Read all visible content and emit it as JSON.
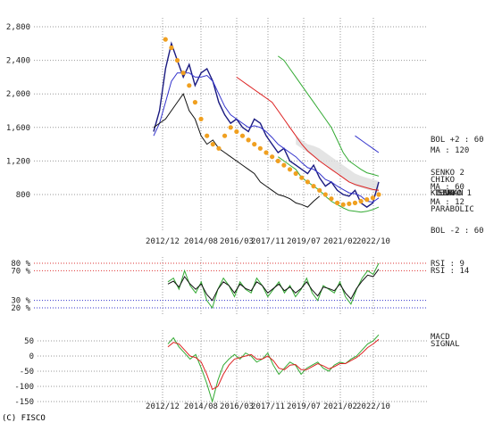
{
  "copyright": "(C) FISCO",
  "chart_data": [
    {
      "type": "line",
      "panel": "price",
      "x_ticks": [
        "2012/12",
        "2014/08",
        "2016/03",
        "2017/11",
        "2019/07",
        "2021/02",
        "2022/10"
      ],
      "y_ticks": [
        800,
        1200,
        1600,
        2000,
        2400,
        2800
      ],
      "y_tick_labels": [
        "800",
        "1,200",
        "1,600",
        "2,000",
        "2,400",
        "2,800"
      ],
      "ylim": [
        500,
        2900
      ],
      "grid": true,
      "legend": [
        {
          "label": "BOL +2 : 60",
          "color": "#33aa33"
        },
        {
          "label": "MA : 120",
          "color": "#3333cc"
        },
        {
          "label": "SENKO 2",
          "color": "#22aa22"
        },
        {
          "label": "CHIKO",
          "color": "#111111"
        },
        {
          "label": "MA : 60",
          "color": "#dd2222"
        },
        {
          "label": "KIJUN",
          "color": "#dd2222"
        },
        {
          "label": "TENKAN",
          "color": "#dd2222"
        },
        {
          "label": "SENKO 1",
          "color": "#cc2222"
        },
        {
          "label": "MA : 12",
          "color": "#3333cc"
        },
        {
          "label": "PARABOLIC",
          "color": "#f0a020"
        },
        {
          "label": "BOL -2 : 60",
          "color": "#33aa33"
        }
      ],
      "series": [
        {
          "name": "close",
          "color": "#1a1a80",
          "values": [
            1550,
            1800,
            2300,
            2600,
            2400,
            2200,
            2350,
            2100,
            2250,
            2300,
            2150,
            1900,
            1750,
            1650,
            1700,
            1600,
            1550,
            1700,
            1650,
            1500,
            1400,
            1300,
            1350,
            1200,
            1150,
            1100,
            1050,
            1150,
            1000,
            900,
            950,
            850,
            800,
            780,
            850,
            700,
            650,
            700,
            950
          ]
        },
        {
          "name": "MA : 12",
          "color": "#3333cc",
          "values": [
            1500,
            1650,
            1900,
            2150,
            2250,
            2250,
            2250,
            2200,
            2200,
            2220,
            2150,
            2000,
            1850,
            1750,
            1700,
            1650,
            1600,
            1620,
            1600,
            1550,
            1480,
            1400,
            1350,
            1300,
            1250,
            1180,
            1120,
            1100,
            1050,
            980,
            950,
            900,
            860,
            820,
            810,
            780,
            720,
            710,
            760
          ]
        },
        {
          "name": "MA : 60",
          "color": "#dd2222",
          "values": [
            null,
            null,
            null,
            null,
            null,
            null,
            null,
            null,
            null,
            null,
            null,
            null,
            null,
            null,
            2200,
            2150,
            2100,
            2050,
            2000,
            1950,
            1900,
            1800,
            1700,
            1600,
            1500,
            1400,
            1320,
            1260,
            1200,
            1150,
            1100,
            1050,
            1000,
            950,
            920,
            900,
            880,
            860,
            850
          ]
        },
        {
          "name": "MA : 120",
          "color": "#3333cc",
          "values": [
            null,
            null,
            null,
            null,
            null,
            null,
            null,
            null,
            null,
            null,
            null,
            null,
            null,
            null,
            null,
            null,
            null,
            null,
            null,
            null,
            null,
            null,
            null,
            null,
            null,
            null,
            null,
            null,
            null,
            null,
            null,
            null,
            null,
            null,
            1500,
            1450,
            1400,
            1350,
            1300
          ]
        },
        {
          "name": "BOL +2 : 60",
          "color": "#33aa33",
          "values": [
            null,
            null,
            null,
            null,
            null,
            null,
            null,
            null,
            null,
            null,
            null,
            null,
            null,
            null,
            null,
            null,
            null,
            null,
            null,
            null,
            null,
            2450,
            2400,
            2300,
            2200,
            2100,
            2000,
            1900,
            1800,
            1700,
            1600,
            1450,
            1300,
            1200,
            1150,
            1100,
            1060,
            1040,
            1020
          ]
        },
        {
          "name": "BOL -2 : 60",
          "color": "#33aa33",
          "values": [
            null,
            null,
            null,
            null,
            null,
            null,
            null,
            null,
            null,
            null,
            null,
            null,
            null,
            null,
            null,
            null,
            null,
            null,
            null,
            null,
            null,
            1250,
            1200,
            1150,
            1100,
            1000,
            950,
            900,
            850,
            780,
            720,
            680,
            640,
            610,
            600,
            590,
            600,
            620,
            650
          ]
        },
        {
          "name": "CHIKO",
          "color": "#111111",
          "values": [
            1600,
            1650,
            1700,
            1800,
            1900,
            2000,
            1800,
            1700,
            1500,
            1400,
            1450,
            1350,
            1300,
            1250,
            1200,
            1150,
            1100,
            1050,
            950,
            900,
            850,
            800,
            780,
            750,
            700,
            680,
            650,
            720,
            780
          ]
        },
        {
          "name": "PARABOLIC",
          "color": "#f0a020",
          "values": [
            null,
            null,
            2650,
            2550,
            2400,
            2250,
            2100,
            1900,
            1700,
            1500,
            1400,
            1350,
            1500,
            1600,
            1550,
            1500,
            1450,
            1400,
            1350,
            1300,
            1250,
            1200,
            1150,
            1100,
            1050,
            1000,
            950,
            900,
            850,
            800,
            750,
            700,
            680,
            690,
            700,
            720,
            740,
            760,
            800
          ]
        }
      ]
    },
    {
      "type": "line",
      "panel": "rsi",
      "x_ticks": [
        "2012/12",
        "2014/08",
        "2016/03",
        "2017/11",
        "2019/07",
        "2021/02",
        "2022/10"
      ],
      "levels": [
        80,
        70,
        30,
        20
      ],
      "level_labels": [
        "80 %",
        "70 %",
        "30 %",
        "20 %"
      ],
      "ylim": [
        0,
        100
      ],
      "legend": [
        {
          "label": "RSI : 9",
          "color": "#33aa33"
        },
        {
          "label": "RSI : 14",
          "color": "#111111"
        }
      ],
      "series": [
        {
          "name": "RSI : 9",
          "color": "#33aa33",
          "values": [
            55,
            60,
            45,
            70,
            50,
            40,
            55,
            30,
            20,
            45,
            60,
            50,
            35,
            55,
            45,
            40,
            60,
            50,
            35,
            45,
            55,
            40,
            50,
            35,
            45,
            60,
            40,
            30,
            50,
            45,
            40,
            55,
            35,
            25,
            45,
            60,
            70,
            65,
            80
          ]
        },
        {
          "name": "RSI : 14",
          "color": "#111111",
          "values": [
            52,
            56,
            48,
            62,
            52,
            45,
            52,
            38,
            30,
            45,
            55,
            50,
            40,
            52,
            46,
            43,
            55,
            50,
            40,
            46,
            52,
            43,
            48,
            40,
            46,
            55,
            44,
            36,
            48,
            46,
            43,
            52,
            40,
            32,
            46,
            56,
            64,
            62,
            72
          ]
        }
      ]
    },
    {
      "type": "line",
      "panel": "macd",
      "x_ticks": [
        "2012/12",
        "2014/08",
        "2016/03",
        "2017/11",
        "2019/07",
        "2021/02",
        "2022/10"
      ],
      "y_ticks": [
        50,
        0,
        -50,
        -100,
        -150
      ],
      "y_tick_labels": [
        "50",
        "0",
        "-50",
        "-100",
        "-150"
      ],
      "ylim": [
        -160,
        80
      ],
      "legend": [
        {
          "label": "MACD",
          "color": "#33aa33"
        },
        {
          "label": "SIGNAL",
          "color": "#dd2222"
        }
      ],
      "series": [
        {
          "name": "MACD",
          "color": "#33aa33",
          "values": [
            40,
            60,
            30,
            10,
            -10,
            5,
            -40,
            -90,
            -150,
            -80,
            -30,
            -10,
            5,
            -10,
            10,
            0,
            -20,
            -10,
            10,
            -30,
            -60,
            -40,
            -20,
            -30,
            -60,
            -40,
            -30,
            -20,
            -40,
            -50,
            -30,
            -20,
            -25,
            -10,
            0,
            20,
            40,
            50,
            70
          ]
        },
        {
          "name": "SIGNAL",
          "color": "#dd2222",
          "values": [
            30,
            45,
            40,
            20,
            0,
            -5,
            -20,
            -60,
            -110,
            -100,
            -60,
            -30,
            -10,
            -5,
            0,
            5,
            -10,
            -10,
            0,
            -15,
            -40,
            -45,
            -30,
            -28,
            -45,
            -45,
            -35,
            -25,
            -32,
            -42,
            -35,
            -25,
            -25,
            -15,
            -5,
            10,
            28,
            40,
            55
          ]
        }
      ]
    }
  ]
}
